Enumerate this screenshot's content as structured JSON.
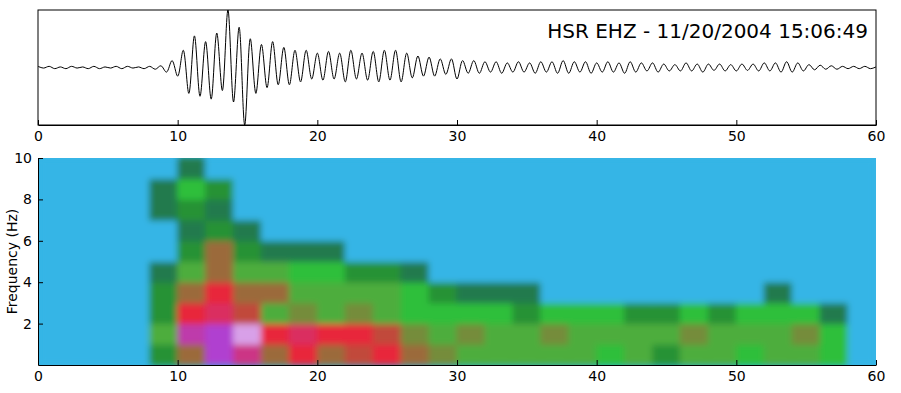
{
  "chart_data": [
    {
      "type": "line",
      "title": "HSR EHZ - 11/20/2004 15:06:49",
      "x": [
        0,
        0.4,
        0.8,
        1.2,
        1.6,
        2,
        2.4,
        2.8,
        3.2,
        3.6,
        4,
        4.4,
        4.8,
        5.2,
        5.6,
        6,
        6.4,
        6.8,
        7.2,
        7.6,
        8,
        8.4,
        8.8,
        9.2,
        9.6,
        10,
        10.4,
        10.8,
        11.2,
        11.6,
        12,
        12.4,
        12.8,
        13.2,
        13.6,
        14,
        14.4,
        14.8,
        15.2,
        15.6,
        16,
        16.4,
        16.8,
        17.2,
        17.6,
        18,
        18.4,
        18.8,
        19.2,
        19.6,
        20,
        20.4,
        20.8,
        21.2,
        21.6,
        22,
        22.4,
        22.8,
        23.2,
        23.6,
        24,
        24.4,
        24.8,
        25.2,
        25.6,
        26,
        26.4,
        26.8,
        27.2,
        27.6,
        28,
        28.4,
        28.8,
        29.2,
        29.6,
        30,
        30.4,
        30.8,
        31.2,
        31.6,
        32,
        32.4,
        32.8,
        33.2,
        33.6,
        34,
        34.4,
        34.8,
        35.2,
        35.6,
        36,
        36.4,
        36.8,
        37.2,
        37.6,
        38,
        38.4,
        38.8,
        39.2,
        39.6,
        40,
        40.4,
        40.8,
        41.2,
        41.6,
        42,
        42.4,
        42.8,
        43.2,
        43.6,
        44,
        44.4,
        44.8,
        45.2,
        45.6,
        46,
        46.4,
        46.8,
        47.2,
        47.6,
        48,
        48.4,
        48.8,
        49.2,
        49.6,
        50,
        50.4,
        50.8,
        51.2,
        51.6,
        52,
        52.4,
        52.8,
        53.2,
        53.6,
        54,
        54.4,
        54.8,
        55.2,
        55.6,
        56,
        56.4,
        56.8,
        57.2,
        57.6,
        58,
        58.4,
        58.8,
        59.2,
        59.6,
        60
      ],
      "values": [
        0.02,
        -0.01,
        0.02,
        -0.02,
        0.01,
        -0.02,
        0.02,
        -0.01,
        0.01,
        -0.02,
        0.02,
        -0.02,
        0.01,
        -0.01,
        0.02,
        -0.02,
        0.02,
        -0.01,
        0.01,
        -0.02,
        0.02,
        -0.03,
        0.03,
        -0.08,
        0.12,
        -0.15,
        0.3,
        -0.45,
        0.55,
        -0.5,
        0.45,
        -0.55,
        0.6,
        -0.4,
        1.0,
        -0.6,
        0.7,
        -1.0,
        0.5,
        -0.45,
        0.4,
        -0.35,
        0.45,
        -0.3,
        0.35,
        -0.3,
        0.3,
        -0.25,
        0.3,
        -0.2,
        0.25,
        -0.22,
        0.28,
        -0.2,
        0.25,
        -0.25,
        0.3,
        -0.2,
        0.25,
        -0.22,
        0.28,
        -0.25,
        0.3,
        -0.22,
        0.3,
        -0.25,
        0.25,
        -0.18,
        0.2,
        -0.15,
        0.18,
        -0.15,
        0.15,
        -0.12,
        0.15,
        -0.2,
        0.12,
        -0.1,
        0.12,
        -0.1,
        0.1,
        -0.08,
        0.1,
        -0.1,
        0.08,
        -0.08,
        0.1,
        -0.08,
        0.08,
        -0.1,
        0.1,
        -0.08,
        0.1,
        -0.1,
        0.12,
        -0.1,
        0.1,
        -0.08,
        0.1,
        -0.1,
        0.08,
        -0.08,
        0.1,
        -0.08,
        0.08,
        -0.1,
        0.1,
        -0.08,
        0.08,
        -0.06,
        0.08,
        -0.08,
        0.06,
        -0.06,
        0.05,
        -0.06,
        0.08,
        -0.06,
        0.06,
        -0.08,
        0.06,
        -0.05,
        0.06,
        -0.06,
        0.05,
        -0.06,
        0.06,
        -0.05,
        0.06,
        -0.06,
        0.08,
        -0.06,
        0.08,
        -0.08,
        0.1,
        -0.08,
        0.08,
        -0.06,
        0.05,
        -0.04,
        0.04,
        -0.03,
        0.03,
        -0.03,
        0.02,
        -0.02,
        0.02,
        -0.02,
        0.02,
        -0.02,
        0.01
      ],
      "color": "#000000",
      "xlim": [
        0,
        60
      ],
      "xticks": [
        0,
        10,
        20,
        30,
        40,
        50,
        60
      ],
      "ylim": [
        -1,
        1
      ],
      "tick_labels": "x"
    },
    {
      "type": "heatmap",
      "y_label": "Frequency (Hz)",
      "x": [
        1,
        3,
        5,
        7,
        9,
        11,
        13,
        15,
        17,
        19,
        21,
        23,
        25,
        27,
        29,
        31,
        33,
        35,
        37,
        39,
        41,
        43,
        45,
        47,
        49,
        51,
        53,
        55,
        57,
        59
      ],
      "y": [
        0.5,
        1.5,
        2.5,
        3.5,
        4.5,
        5.5,
        6.5,
        7.5,
        8.5,
        9.5
      ],
      "z": [
        [
          2,
          1.5,
          2,
          1.5,
          4,
          6,
          9,
          8,
          6,
          7,
          6,
          6.5,
          7,
          6,
          5.5,
          5,
          5,
          5,
          5,
          5,
          4.5,
          5,
          4,
          5,
          5,
          4.5,
          5,
          5,
          4.5,
          2
        ],
        [
          2,
          2,
          2,
          1.5,
          5,
          8.5,
          9,
          9.5,
          7,
          7.5,
          7,
          7,
          6.5,
          5.5,
          5,
          5.5,
          5,
          5,
          5.5,
          5,
          5,
          5,
          5,
          5.5,
          5,
          5,
          5,
          5.5,
          4.5,
          2.5
        ],
        [
          1,
          1,
          1,
          1,
          4,
          7,
          7.5,
          6.5,
          5,
          5.5,
          5,
          5.5,
          5,
          4.5,
          4.5,
          4.5,
          4.5,
          4,
          4.5,
          4.5,
          4.5,
          4,
          4,
          4.5,
          4,
          4.5,
          4.5,
          4.5,
          3.5,
          2
        ],
        [
          1,
          1,
          1,
          1,
          4,
          6,
          7,
          6,
          6,
          5,
          5,
          5,
          5,
          4.5,
          4,
          3.5,
          3.5,
          3.5,
          3,
          3,
          3,
          3,
          3,
          3,
          3,
          3,
          3.5,
          3,
          2.5,
          1.5
        ],
        [
          1,
          1,
          1,
          1,
          3.5,
          5,
          6,
          5,
          5,
          4.5,
          4.5,
          4,
          4,
          3.5,
          3,
          2.5,
          2.5,
          2.5,
          2.5,
          2.5,
          2.5,
          2,
          2,
          2,
          2,
          2,
          2.5,
          2,
          2,
          1.5
        ],
        [
          1,
          1,
          1,
          1,
          3,
          4,
          6,
          4,
          3.5,
          3.5,
          3.5,
          3,
          3,
          2.5,
          2.5,
          2,
          2,
          2,
          2,
          1.5,
          1.5,
          1.5,
          1.5,
          1.5,
          1.5,
          1.5,
          1.5,
          1.5,
          1.5,
          1
        ],
        [
          1,
          1,
          1,
          1,
          3,
          3.5,
          4,
          3.5,
          3,
          3,
          2.5,
          2.5,
          2.5,
          2,
          2,
          1.5,
          1.5,
          1.5,
          1.5,
          1.5,
          1.5,
          1.5,
          1,
          1,
          1,
          1.5,
          1.5,
          1,
          1,
          1
        ],
        [
          1,
          1,
          1,
          1,
          3.5,
          4,
          3.5,
          3,
          2.5,
          2.5,
          2,
          2,
          2,
          1.5,
          1.5,
          1.5,
          1.5,
          1.5,
          1.5,
          1,
          1,
          1,
          1,
          1,
          1,
          1,
          1,
          1,
          1,
          1
        ],
        [
          1,
          1,
          1,
          1,
          3.5,
          4.5,
          4,
          3,
          2.5,
          2,
          2,
          2,
          1.5,
          1.5,
          1.5,
          1.5,
          1,
          1,
          1,
          1,
          1,
          1,
          1,
          1,
          1,
          1,
          1,
          1,
          1,
          1
        ],
        [
          1,
          1,
          1,
          1,
          3,
          3.5,
          3,
          2.5,
          2,
          2,
          2,
          1.5,
          1.5,
          1.5,
          1.5,
          1,
          1,
          1,
          1,
          1,
          1,
          1,
          1,
          1,
          1,
          1,
          1,
          1,
          1,
          1
        ]
      ],
      "zlim": [
        0,
        10
      ],
      "xlim": [
        0,
        60
      ],
      "xticks": [
        0,
        10,
        20,
        30,
        40,
        50,
        60
      ],
      "ylim": [
        0,
        10
      ],
      "yticks": [
        2,
        4,
        6,
        8,
        10
      ]
    }
  ]
}
